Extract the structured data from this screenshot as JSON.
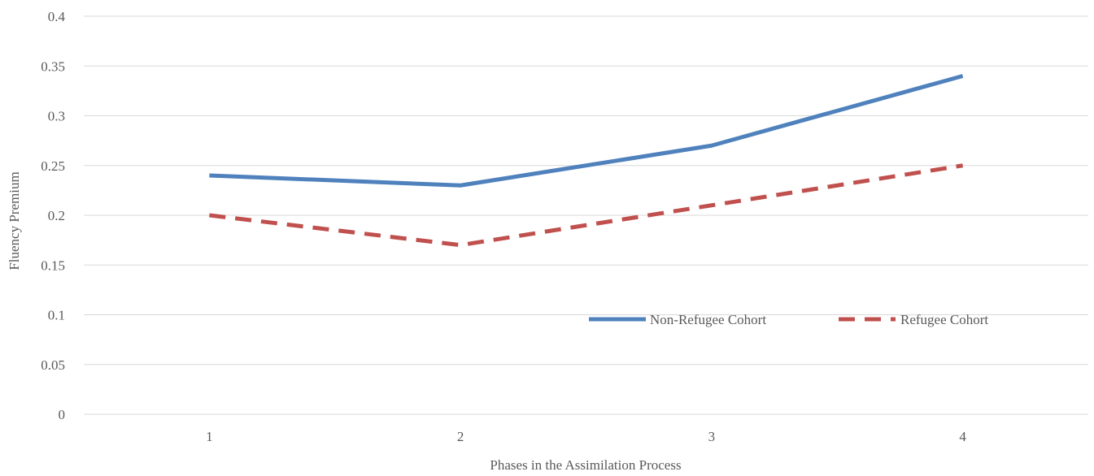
{
  "chart_data": {
    "type": "line",
    "x": [
      1,
      2,
      3,
      4
    ],
    "xlabel": "Phases in the Assimilation Process",
    "ylabel": "Fluency Premium",
    "ylim": [
      0,
      0.4
    ],
    "xlim": [
      0.5,
      4.5
    ],
    "yticks": [
      "0",
      "0.05",
      "0.1",
      "0.15",
      "0.2",
      "0.25",
      "0.3",
      "0.35",
      "0.4"
    ],
    "xticks": [
      "1",
      "2",
      "3",
      "4"
    ],
    "grid": "horizontal",
    "legend": "inside-right",
    "series": [
      {
        "name": "Non-Refugee Cohort",
        "values": [
          0.24,
          0.23,
          0.27,
          0.34
        ],
        "color": "#4f81bd",
        "style": "solid"
      },
      {
        "name": "Refugee Cohort",
        "values": [
          0.2,
          0.17,
          0.21,
          0.25
        ],
        "color": "#c0504d",
        "style": "dashed"
      }
    ]
  }
}
